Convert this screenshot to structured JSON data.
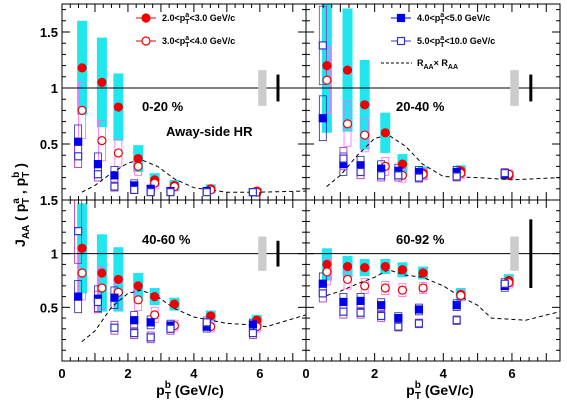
{
  "chart_data": {
    "type": "scatter",
    "ylabel_main": "J",
    "ylabel_sub": "AA",
    "ylabel_rest": " ( p",
    "ylabel_a": "a",
    "ylabel_mid": " , p",
    "ylabel_b": "b",
    "ylabel_end": " )",
    "ylabel_T": "T",
    "xlabel_main": "p",
    "xlabel_sup": "b",
    "xlabel_sub": "T",
    "xlabel_unit": " (GeV/c)",
    "xlim": [
      0,
      7.4
    ],
    "ylim": [
      0,
      1.75
    ],
    "xticks": [
      "0",
      "2",
      "4",
      "6"
    ],
    "yticks": [
      "0.5",
      "1",
      "1.5"
    ],
    "legend": [
      {
        "label": "2.0<p",
        "sup": "a",
        "sub": "T",
        "rest": "<3.0 GeV/c"
      },
      {
        "label": "3.0<p",
        "sup": "a",
        "sub": "T",
        "rest": "<4.0 GeV/c"
      },
      {
        "label": "4.0<p",
        "sup": "a",
        "sub": "T",
        "rest": "<5.0 GeV/c"
      },
      {
        "label": "5.0<p",
        "sup": "a",
        "sub": "T",
        "rest": "<10.0 GeV/c"
      },
      {
        "label": "R",
        "sub1": "AA",
        "mid": "× R",
        "sub2": "AA"
      }
    ],
    "panels": [
      {
        "label": "0-20 %",
        "extra_label": "Away-side HR",
        "x": [
          0.55,
          1.15,
          1.65,
          2.25,
          2.75,
          3.35,
          4.45,
          5.85
        ],
        "series": [
          {
            "name": "2.0-3.0",
            "values": [
              1.18,
              1.05,
              0.83,
              0.37,
              0.18,
              0.13,
              0.1,
              0.08
            ],
            "sys": [
              0.42,
              0.4,
              0.3,
              0.12,
              0.06,
              0.05,
              0.04,
              0.03
            ]
          },
          {
            "name": "3.0-4.0",
            "values": [
              0.8,
              0.53,
              0.42,
              0.3,
              0.15,
              0.12,
              0.09,
              0.07
            ],
            "sys": [
              0.25,
              0.18,
              0.12,
              0.08,
              0.05,
              0.04,
              0.03,
              0.03
            ]
          },
          {
            "name": "4.0-5.0",
            "values": [
              0.52,
              0.32,
              0.22,
              0.13,
              0.1,
              0.08,
              0.08,
              0.07
            ],
            "sys": [
              0.15,
              0.1,
              0.08,
              0.05,
              0.03,
              0.03,
              0.03,
              0.03
            ]
          },
          {
            "name": "5.0-10.0",
            "values": [
              0.39,
              0.23,
              0.12,
              0.09,
              0.07,
              0.07,
              0.07,
              0.07
            ],
            "sys": [
              0.1,
              0.06,
              0.04,
              0.03,
              0.02,
              0.02,
              0.02,
              0.02
            ]
          }
        ],
        "raa": [
          [
            0.6,
            0.07
          ],
          [
            1.0,
            0.13
          ],
          [
            1.5,
            0.24
          ],
          [
            2.0,
            0.33
          ],
          [
            2.4,
            0.36
          ],
          [
            2.9,
            0.3
          ],
          [
            3.4,
            0.19
          ],
          [
            4.0,
            0.11
          ],
          [
            5.0,
            0.07
          ],
          [
            6.0,
            0.07
          ],
          [
            7.4,
            0.08
          ]
        ],
        "norm_sys": 0.16,
        "global_sys": 0.12
      },
      {
        "label": "20-40 %",
        "extra_label": "",
        "x": [
          0.55,
          1.15,
          1.65,
          2.25,
          2.75,
          3.35,
          4.45,
          5.85
        ],
        "series": [
          {
            "name": "2.0-3.0",
            "values": [
              1.2,
              1.16,
              0.85,
              0.6,
              0.32,
              0.24,
              0.26,
              0.22
            ],
            "sys": [
              0.6,
              0.55,
              0.4,
              0.18,
              0.09,
              0.06,
              0.05,
              0.04
            ]
          },
          {
            "name": "3.0-4.0",
            "values": [
              1.07,
              0.68,
              0.58,
              0.3,
              0.22,
              0.23,
              0.24,
              0.23
            ],
            "sys": [
              0.3,
              0.2,
              0.15,
              0.08,
              0.06,
              0.05,
              0.05,
              0.04
            ]
          },
          {
            "name": "4.0-5.0",
            "values": [
              0.73,
              0.32,
              0.31,
              0.28,
              0.26,
              0.25,
              0.25,
              0.23
            ],
            "sys": [
              0.2,
              0.1,
              0.08,
              0.07,
              0.06,
              0.05,
              0.05,
              0.04
            ]
          },
          {
            "name": "5.0-10.0",
            "values": [
              1.38,
              0.37,
              0.25,
              0.22,
              0.22,
              0.2,
              0.21,
              0.24
            ],
            "sys": [
              0.35,
              0.1,
              0.06,
              0.05,
              0.05,
              0.04,
              0.04,
              0.04
            ]
          }
        ],
        "raa": [
          [
            0.6,
            0.12
          ],
          [
            1.0,
            0.22
          ],
          [
            1.5,
            0.4
          ],
          [
            2.0,
            0.55
          ],
          [
            2.4,
            0.58
          ],
          [
            2.9,
            0.48
          ],
          [
            3.4,
            0.32
          ],
          [
            4.0,
            0.21
          ],
          [
            5.0,
            0.2
          ],
          [
            6.0,
            0.18
          ],
          [
            7.4,
            0.2
          ]
        ],
        "norm_sys": 0.16,
        "global_sys": 0.12
      },
      {
        "label": "40-60 %",
        "extra_label": "",
        "x": [
          0.55,
          1.15,
          1.65,
          2.25,
          2.75,
          3.35,
          4.45,
          5.85
        ],
        "series": [
          {
            "name": "2.0-3.0",
            "values": [
              1.05,
              0.82,
              0.76,
              0.7,
              0.6,
              0.53,
              0.42,
              0.38
            ],
            "sys": [
              0.42,
              0.36,
              0.3,
              0.12,
              0.08,
              0.06,
              0.05,
              0.05
            ]
          },
          {
            "name": "3.0-4.0",
            "values": [
              0.82,
              0.68,
              0.64,
              0.57,
              0.43,
              0.33,
              0.32,
              0.32
            ],
            "sys": [
              0.25,
              0.2,
              0.15,
              0.1,
              0.07,
              0.05,
              0.05,
              0.05
            ]
          },
          {
            "name": "4.0-5.0",
            "values": [
              0.6,
              0.58,
              0.59,
              0.38,
              0.36,
              0.33,
              0.32,
              0.34
            ],
            "sys": [
              0.15,
              0.12,
              0.1,
              0.08,
              0.06,
              0.05,
              0.05,
              0.05
            ]
          },
          {
            "name": "5.0-10.0",
            "values": [
              1.21,
              0.55,
              0.31,
              0.26,
              0.22,
              0.3,
              0.36,
              0.26
            ],
            "sys": [
              0.3,
              0.1,
              0.06,
              0.05,
              0.05,
              0.05,
              0.05,
              0.05
            ]
          }
        ],
        "raa": [
          [
            0.6,
            0.18
          ],
          [
            1.0,
            0.28
          ],
          [
            1.5,
            0.5
          ],
          [
            2.0,
            0.63
          ],
          [
            2.4,
            0.66
          ],
          [
            2.9,
            0.6
          ],
          [
            3.4,
            0.49
          ],
          [
            4.0,
            0.41
          ],
          [
            5.0,
            0.35
          ],
          [
            5.6,
            0.34
          ],
          [
            6.2,
            0.32
          ],
          [
            7.4,
            0.43
          ]
        ],
        "norm_sys": 0.16,
        "global_sys": 0.12
      },
      {
        "label": "60-92 %",
        "extra_label": "",
        "x": [
          0.55,
          1.15,
          1.65,
          2.25,
          2.75,
          3.35,
          4.45,
          5.85
        ],
        "series": [
          {
            "name": "2.0-3.0",
            "values": [
              0.9,
              0.88,
              0.87,
              0.88,
              0.85,
              0.82,
              0.62,
              0.75
            ],
            "sys": [
              0.15,
              0.1,
              0.08,
              0.07,
              0.07,
              0.06,
              0.06,
              0.06
            ]
          },
          {
            "name": "3.0-4.0",
            "values": [
              0.83,
              0.76,
              0.7,
              0.68,
              0.66,
              0.68,
              0.61,
              0.73
            ],
            "sys": [
              0.12,
              0.09,
              0.07,
              0.06,
              0.06,
              0.05,
              0.05,
              0.05
            ]
          },
          {
            "name": "4.0-5.0",
            "values": [
              0.72,
              0.55,
              0.56,
              0.52,
              0.4,
              0.48,
              0.52,
              0.7
            ],
            "sys": [
              0.1,
              0.08,
              0.07,
              0.06,
              0.05,
              0.05,
              0.05,
              0.05
            ]
          },
          {
            "name": "5.0-10.0",
            "values": [
              0.63,
              0.46,
              0.45,
              0.42,
              0.32,
              0.35,
              0.38,
              0.72
            ],
            "sys": [
              0.08,
              0.06,
              0.05,
              0.05,
              0.04,
              0.04,
              0.04,
              0.05
            ]
          }
        ],
        "raa": [
          [
            0.6,
            0.61
          ],
          [
            1.0,
            0.65
          ],
          [
            1.5,
            0.72
          ],
          [
            2.0,
            0.78
          ],
          [
            2.4,
            0.85
          ],
          [
            2.9,
            0.8
          ],
          [
            3.4,
            0.78
          ],
          [
            4.0,
            0.7
          ],
          [
            4.5,
            0.6
          ],
          [
            5.0,
            0.52
          ],
          [
            5.4,
            0.4
          ],
          [
            6.4,
            0.38
          ],
          [
            7.4,
            0.46
          ]
        ],
        "norm_sys": 0.16,
        "global_sys": 0.32
      }
    ],
    "colors": {
      "s1": "#ee0000",
      "s2": "#ee0000",
      "s3": "#0000ee",
      "s4": "#3333cc",
      "sys1": "#22e6ee",
      "sys2": "#ff66ff",
      "sys3": "#2222aa",
      "sys4": "#aa22aa",
      "norm_box": "#cccccc",
      "refline": "#000000"
    }
  }
}
